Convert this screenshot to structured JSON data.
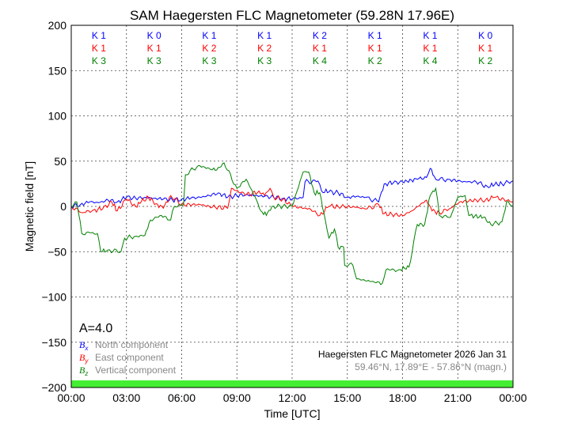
{
  "chart_data": {
    "type": "line",
    "title": "SAM Haegersten FLC Magnetometer (59.28N 17.96E)",
    "xlabel": "Time [UTC]",
    "ylabel": "Magnetic field [nT]",
    "xlim": [
      0,
      24
    ],
    "ylim": [
      -200,
      200
    ],
    "grid": true,
    "x_tick_labels": [
      "00:00",
      "03:00",
      "06:00",
      "09:00",
      "12:00",
      "15:00",
      "18:00",
      "21:00",
      "00:00"
    ],
    "y_ticks": [
      200,
      150,
      100,
      50,
      0,
      -50,
      -100,
      -150,
      -200
    ],
    "y_tick_labels": [
      "200",
      "150",
      "100",
      "50",
      "0",
      "−50",
      "−100",
      "−150",
      "−200"
    ],
    "k_indices": {
      "x": [
        "K 1",
        "K 0",
        "K 1",
        "K 1",
        "K 2",
        "K 1",
        "K 1",
        "K 0"
      ],
      "y": [
        "K 1",
        "K 1",
        "K 2",
        "K 2",
        "K 1",
        "K 1",
        "K 1",
        "K 1"
      ],
      "z": [
        "K 3",
        "K 3",
        "K 3",
        "K 3",
        "K 4",
        "K 2",
        "K 4",
        "K 2"
      ]
    },
    "a_index": "A=4.0",
    "activity_bar_color": "#44ee33",
    "legend": [
      {
        "symbol": "B",
        "sub": "x",
        "label": "North component",
        "color": "#0000ff"
      },
      {
        "symbol": "B",
        "sub": "y",
        "label": "East component",
        "color": "#ff0000"
      },
      {
        "symbol": "B",
        "sub": "z",
        "label": "Vertical component",
        "color": "#008000"
      }
    ],
    "annotation_title": "Haegersten FLC Magnetometer 2026 Jan 31",
    "annotation_coords": "59.46°N, 17.89°E - 57.86°N (magn.)",
    "series": [
      {
        "name": "Bx North",
        "color": "#0000ff",
        "t": [
          0,
          0.5,
          1,
          1.5,
          2,
          2.5,
          3,
          3.5,
          4,
          4.5,
          5,
          5.5,
          6,
          6.5,
          7,
          7.5,
          8,
          8.5,
          9,
          9.5,
          10,
          10.5,
          11,
          11.5,
          12,
          12.6,
          12.7,
          13.4,
          13.6,
          14,
          14.5,
          15,
          15.5,
          16,
          16.7,
          17,
          17.5,
          18,
          18.8,
          19.3,
          19.5,
          19.8,
          20.5,
          21,
          21.5,
          22,
          22.6,
          23,
          23.4,
          24
        ],
        "v": [
          0,
          2,
          5,
          4,
          7,
          5,
          10,
          9,
          10,
          9,
          8,
          7,
          8,
          9,
          10,
          12,
          15,
          10,
          12,
          13,
          12,
          11,
          10,
          9,
          8,
          10,
          27,
          28,
          17,
          16,
          15,
          10,
          11,
          10,
          5,
          25,
          26,
          27,
          30,
          32,
          42,
          30,
          30,
          28,
          27,
          27,
          22,
          24,
          25,
          28
        ]
      },
      {
        "name": "By East",
        "color": "#ff0000",
        "t": [
          0,
          0.6,
          1.2,
          1.7,
          2.2,
          2.5,
          3,
          3.5,
          3.8,
          4.2,
          4.6,
          5,
          5.4,
          6,
          7,
          7.5,
          8.5,
          8.7,
          9.2,
          9.7,
          10.2,
          10.5,
          10.8,
          11,
          11.5,
          12,
          13,
          13.5,
          14,
          14.5,
          15,
          15.5,
          16,
          16.7,
          17,
          18,
          18.5,
          19.3,
          19.6,
          20,
          20.6,
          21.1,
          22,
          22.5,
          23,
          24
        ],
        "v": [
          0,
          -7,
          -4,
          -3,
          5,
          -5,
          8,
          0,
          5,
          10,
          3,
          -2,
          12,
          2,
          2,
          0,
          -2,
          20,
          15,
          13,
          17,
          12,
          20,
          10,
          8,
          0,
          -3,
          -10,
          0,
          0,
          0,
          -1,
          -3,
          2,
          -8,
          -10,
          -5,
          7,
          -5,
          -7,
          -2,
          5,
          7,
          7,
          10,
          5
        ]
      },
      {
        "name": "Bz Vertical",
        "color": "#008000",
        "t": [
          0,
          0.3,
          0.57,
          1,
          1.43,
          1.6,
          2,
          2.7,
          2.9,
          3.5,
          4,
          4.3,
          4.9,
          5.4,
          5.6,
          6.1,
          6.2,
          6.9,
          7.5,
          7.9,
          8.3,
          9,
          9.5,
          10,
          10.3,
          10.6,
          10.9,
          11.5,
          12,
          12.6,
          12.9,
          13.2,
          13.5,
          13.8,
          14,
          14.3,
          14.5,
          14.8,
          14.85,
          15.3,
          15.5,
          16.3,
          16.9,
          17.1,
          17.8,
          18.35,
          18.8,
          19.2,
          19.5,
          19.8,
          20,
          20.6,
          21,
          21.4,
          21.6,
          22.4,
          22.8,
          23.4,
          23.65,
          24
        ],
        "v": [
          0,
          5,
          -30,
          -29,
          -30,
          -50,
          -48,
          -50,
          -35,
          -33,
          -32,
          -15,
          -10,
          -15,
          0,
          2,
          35,
          45,
          42,
          40,
          48,
          20,
          30,
          10,
          -5,
          -10,
          0,
          0,
          0,
          38,
          38,
          15,
          15,
          -15,
          -35,
          -25,
          -45,
          -45,
          -65,
          -65,
          -80,
          -83,
          -85,
          -70,
          -70,
          -67,
          -20,
          -20,
          12,
          20,
          -10,
          -12,
          10,
          12,
          -10,
          -12,
          -20,
          -17,
          5,
          0
        ]
      }
    ]
  }
}
